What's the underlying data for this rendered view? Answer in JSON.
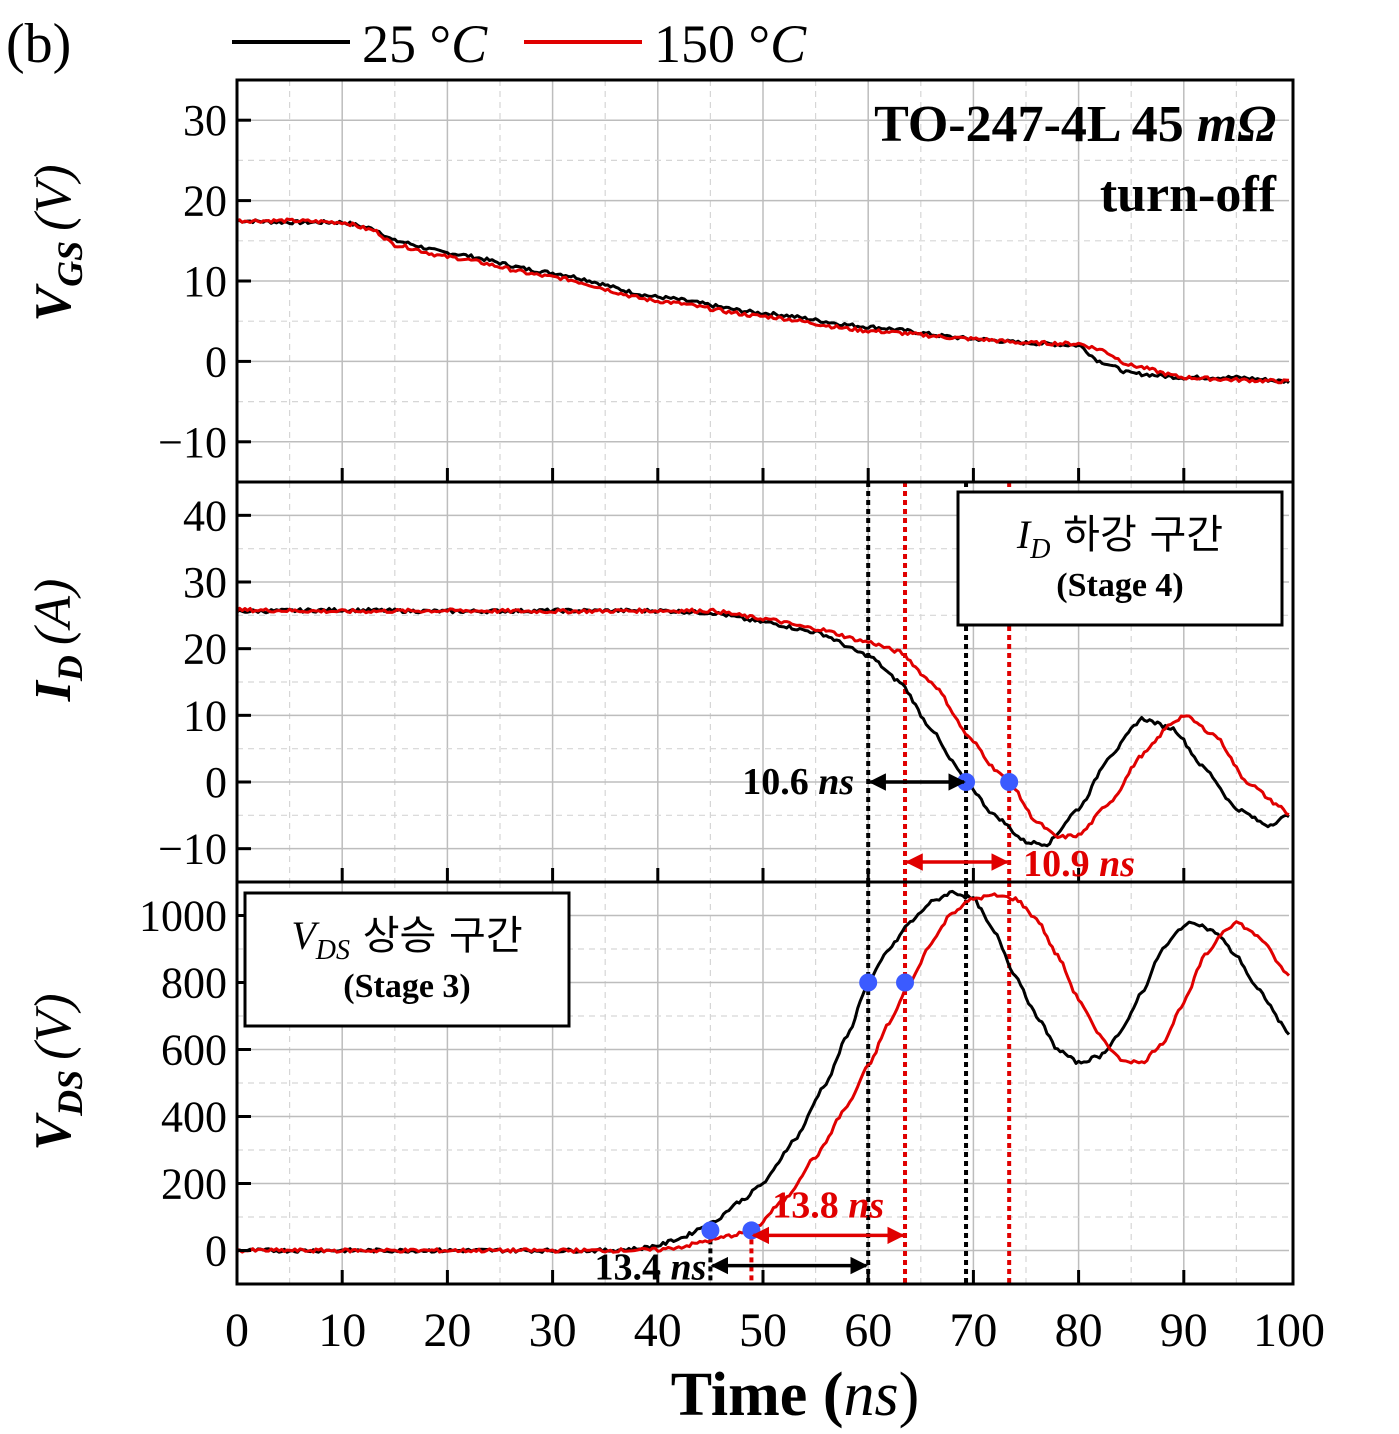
{
  "figure": {
    "panel_label": "(b)",
    "legend": [
      {
        "label": "25 °C",
        "label_main": "25 °",
        "label_unit": "C",
        "color": "#000000"
      },
      {
        "label": "150 °C",
        "label_main": "150 °",
        "label_unit": "C",
        "color": "#e00000"
      }
    ],
    "device_title": {
      "main": "TO-247-4L 45 ",
      "unit": "mΩ",
      "line2": "turn-off"
    },
    "xlabel": {
      "main": "Time (",
      "unit": "ns",
      "close": ")"
    },
    "x_ticks": [
      "0",
      "10",
      "20",
      "30",
      "40",
      "50",
      "60",
      "70",
      "80",
      "90",
      "100"
    ],
    "marker_color": "#3b5bff"
  },
  "chart_data": [
    {
      "type": "line",
      "id": "vgs",
      "ylabel": {
        "var": "V",
        "sub": "GS",
        "unit": "(V)"
      },
      "xlim": [
        0,
        100
      ],
      "ylim": [
        -15,
        35
      ],
      "yticks": [
        -10,
        0,
        10,
        20,
        30
      ],
      "ytick_labels": [
        "−10",
        "0",
        "10",
        "20",
        "30"
      ],
      "grid": true,
      "series": [
        {
          "name": "25 °C",
          "color": "#000000",
          "x": [
            0,
            5,
            10,
            13,
            15,
            20,
            30,
            40,
            50,
            60,
            70,
            75,
            80,
            82,
            85,
            90,
            95,
            100
          ],
          "y": [
            17.5,
            17.3,
            17.3,
            16.5,
            15,
            13.5,
            11,
            8,
            6,
            4.3,
            2.8,
            2.3,
            2,
            0,
            -1.5,
            -2,
            -2,
            -2.5
          ]
        },
        {
          "name": "150 °C",
          "color": "#e00000",
          "x": [
            0,
            5,
            10,
            13,
            15,
            20,
            30,
            40,
            50,
            60,
            70,
            75,
            80,
            82,
            85,
            90,
            95,
            100
          ],
          "y": [
            17.5,
            17.5,
            17.3,
            16.3,
            14.5,
            13,
            10.5,
            7.5,
            5.6,
            3.8,
            2.8,
            2.3,
            2.2,
            1.5,
            -0.5,
            -2,
            -2.3,
            -2.5
          ]
        }
      ]
    },
    {
      "type": "line",
      "id": "id",
      "ylabel": {
        "var": "I",
        "sub": "D",
        "unit": "(A)"
      },
      "xlim": [
        0,
        100
      ],
      "ylim": [
        -15,
        45
      ],
      "yticks": [
        -10,
        0,
        10,
        20,
        30,
        40
      ],
      "ytick_labels": [
        "−10",
        "0",
        "10",
        "20",
        "30",
        "40"
      ],
      "grid": true,
      "annotation_box": {
        "var": "I",
        "sub": "D",
        "text": " 하강 구간",
        "stage": "(Stage 4)"
      },
      "series": [
        {
          "name": "25 °C",
          "color": "#000000",
          "x": [
            0,
            10,
            20,
            30,
            40,
            45,
            50,
            55,
            60,
            63,
            66,
            68,
            69.3,
            72,
            75,
            77,
            80,
            83,
            86,
            89,
            92,
            95,
            98,
            100
          ],
          "y": [
            25.6,
            25.8,
            25.6,
            25.7,
            25.7,
            25.4,
            24,
            22.5,
            19,
            15,
            8,
            3,
            0,
            -5,
            -9,
            -9.3,
            -4,
            4,
            9.5,
            8,
            2,
            -4,
            -6.5,
            -5
          ]
        },
        {
          "name": "150 °C",
          "color": "#e00000",
          "x": [
            0,
            10,
            20,
            30,
            40,
            45,
            50,
            55,
            60,
            63,
            66,
            70,
            72,
            73.4,
            76,
            78,
            80,
            83,
            86,
            89,
            90,
            93,
            96,
            99,
            100
          ],
          "y": [
            25.8,
            25.6,
            25.7,
            25.6,
            25.7,
            25.7,
            24.5,
            23,
            21,
            19.5,
            15,
            6,
            2,
            0,
            -6,
            -8.3,
            -8,
            -3,
            4,
            9,
            10,
            7,
            0,
            -3.5,
            -5
          ]
        }
      ],
      "markers": [
        {
          "x": 69.3,
          "y": 0,
          "series": "25 °C"
        },
        {
          "x": 73.4,
          "y": 0,
          "series": "150 °C"
        }
      ],
      "annotations": [
        {
          "text": "10.6 ",
          "unit": "ns",
          "color": "#000000",
          "x_from": 60.0,
          "x_to": 69.3,
          "y": 0
        },
        {
          "text": "10.9 ",
          "unit": "ns",
          "color": "#e00000",
          "x_from": 63.5,
          "x_to": 73.4,
          "y": -12
        }
      ]
    },
    {
      "type": "line",
      "id": "vds",
      "ylabel": {
        "var": "V",
        "sub": "DS",
        "unit": "(V)"
      },
      "xlim": [
        0,
        100
      ],
      "ylim": [
        -100,
        1100
      ],
      "yticks": [
        0,
        200,
        400,
        600,
        800,
        1000
      ],
      "ytick_labels": [
        "0",
        "200",
        "400",
        "600",
        "800",
        "1000"
      ],
      "grid": true,
      "annotation_box": {
        "var": "V",
        "sub": "DS",
        "text": " 상승 구간",
        "stage": "(Stage 3)"
      },
      "series": [
        {
          "name": "25 °C",
          "color": "#000000",
          "x": [
            0,
            10,
            20,
            30,
            35,
            38,
            40,
            42,
            45,
            48,
            50,
            53,
            56,
            58,
            60,
            62,
            64,
            66,
            68,
            70,
            72,
            74,
            76,
            78,
            80,
            82,
            84,
            86,
            88,
            90,
            91,
            93,
            95,
            97,
            100
          ],
          "y": [
            0,
            0,
            0,
            0,
            0,
            5,
            15,
            35,
            80,
            150,
            200,
            330,
            500,
            640,
            800,
            900,
            980,
            1040,
            1070,
            1050,
            950,
            820,
            700,
            600,
            560,
            580,
            650,
            770,
            900,
            970,
            980,
            950,
            880,
            780,
            650
          ]
        },
        {
          "name": "150 °C",
          "color": "#e00000",
          "x": [
            0,
            10,
            20,
            30,
            35,
            40,
            42,
            45,
            47,
            49,
            52,
            55,
            58,
            60,
            62,
            64,
            66,
            68,
            70,
            72,
            74,
            76,
            78,
            80,
            82,
            84,
            86,
            88,
            90,
            92,
            94,
            95,
            97,
            100
          ],
          "y": [
            0,
            0,
            0,
            0,
            0,
            2,
            10,
            30,
            45,
            60,
            150,
            280,
            430,
            550,
            680,
            800,
            920,
            1010,
            1050,
            1060,
            1050,
            990,
            880,
            750,
            640,
            570,
            560,
            620,
            740,
            880,
            960,
            980,
            940,
            820
          ]
        }
      ],
      "markers": [
        {
          "x": 45.0,
          "y": 60,
          "series": "25 °C"
        },
        {
          "x": 48.9,
          "y": 60,
          "series": "150 °C"
        },
        {
          "x": 60.0,
          "y": 800,
          "series": "25 °C"
        },
        {
          "x": 63.5,
          "y": 800,
          "series": "150 °C"
        }
      ],
      "annotations": [
        {
          "text": "13.8 ",
          "unit": "ns",
          "color": "#e00000",
          "x_from": 48.9,
          "x_to": 63.5,
          "y": 45
        },
        {
          "text": "13.4 ",
          "unit": "ns",
          "color": "#000000",
          "x_from": 45.0,
          "x_to": 60.0,
          "y": -45
        }
      ]
    }
  ],
  "vlines": [
    {
      "x": 60.0,
      "color": "#000000",
      "panels": [
        "id",
        "vds"
      ]
    },
    {
      "x": 63.5,
      "color": "#e00000",
      "panels": [
        "id",
        "vds"
      ]
    },
    {
      "x": 69.3,
      "color": "#000000",
      "panels": [
        "id",
        "vds"
      ]
    },
    {
      "x": 73.4,
      "color": "#e00000",
      "panels": [
        "id",
        "vds"
      ]
    },
    {
      "x": 45.0,
      "color": "#000000",
      "panels": [
        "vds"
      ],
      "y_to": 60
    },
    {
      "x": 48.9,
      "color": "#e00000",
      "panels": [
        "vds"
      ],
      "y_to": 60
    }
  ]
}
